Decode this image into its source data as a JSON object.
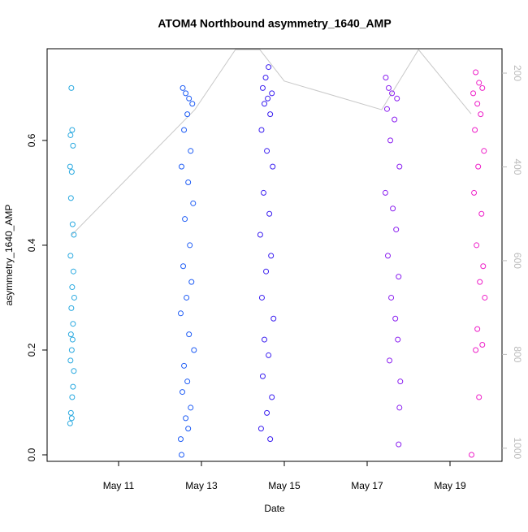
{
  "chart_data": {
    "type": "scatter",
    "title": "ATOM4 Northbound asymmetry_1640_AMP",
    "x_label": "Date",
    "y_label": "asymmetry_1640_AMP",
    "xlim": [
      9.275,
      20.255
    ],
    "xticks": [
      {
        "value": 11,
        "label": "May 11"
      },
      {
        "value": 13,
        "label": "May 13"
      },
      {
        "value": 15,
        "label": "May 15"
      },
      {
        "value": 17,
        "label": "May 17"
      },
      {
        "value": 19,
        "label": "May 19"
      }
    ],
    "ylim": [
      -0.0124,
      0.775
    ],
    "yticks": [
      {
        "value": 0,
        "label": "0.0"
      },
      0.2,
      0.4,
      0.6
    ],
    "y2lim": [
      1028,
      148
    ],
    "y2ticks": [
      200,
      400,
      600,
      800,
      1000
    ],
    "series": [
      {
        "color": "#29a9e0",
        "x": [
          9.86,
          9.88,
          9.84,
          9.9,
          9.83,
          9.87,
          9.85,
          9.89,
          9.92,
          9.84,
          9.91,
          9.88,
          9.93,
          9.86,
          9.9,
          9.85,
          9.89,
          9.87,
          9.84,
          9.92,
          9.9,
          9.88,
          9.85,
          9.87,
          9.83
        ],
        "values": [
          0.7,
          0.62,
          0.61,
          0.59,
          0.55,
          0.54,
          0.49,
          0.44,
          0.42,
          0.38,
          0.35,
          0.32,
          0.3,
          0.28,
          0.25,
          0.23,
          0.22,
          0.2,
          0.18,
          0.16,
          0.13,
          0.11,
          0.08,
          0.07,
          0.06
        ]
      },
      {
        "color": "#1e5cf5",
        "x": [
          12.55,
          12.62,
          12.7,
          12.78,
          12.66,
          12.58,
          12.74,
          12.52,
          12.68,
          12.8,
          12.6,
          12.72,
          12.56,
          12.76,
          12.64,
          12.5,
          12.7,
          12.82,
          12.58,
          12.66,
          12.54,
          12.74,
          12.62,
          12.68,
          12.52,
          12.5
        ],
        "values": [
          0.7,
          0.69,
          0.68,
          0.67,
          0.65,
          0.62,
          0.58,
          0.55,
          0.52,
          0.48,
          0.45,
          0.4,
          0.36,
          0.33,
          0.3,
          0.27,
          0.23,
          0.2,
          0.17,
          0.14,
          0.12,
          0.09,
          0.07,
          0.05,
          0.0,
          0.03
        ]
      },
      {
        "color": "#3a1ef0",
        "x": [
          14.62,
          14.55,
          14.48,
          14.7,
          14.6,
          14.52,
          14.66,
          14.45,
          14.58,
          14.72,
          14.5,
          14.64,
          14.42,
          14.68,
          14.56,
          14.46,
          14.74,
          14.52,
          14.62,
          14.48,
          14.7,
          14.58,
          14.44,
          14.66
        ],
        "values": [
          0.74,
          0.72,
          0.7,
          0.69,
          0.68,
          0.67,
          0.65,
          0.62,
          0.58,
          0.55,
          0.5,
          0.46,
          0.42,
          0.38,
          0.35,
          0.3,
          0.26,
          0.22,
          0.19,
          0.15,
          0.11,
          0.08,
          0.05,
          0.03
        ]
      },
      {
        "color": "#8a1ef0",
        "x": [
          17.45,
          17.52,
          17.6,
          17.72,
          17.48,
          17.66,
          17.56,
          17.78,
          17.44,
          17.62,
          17.7,
          17.5,
          17.76,
          17.58,
          17.68,
          17.74,
          17.54,
          17.8,
          17.78,
          17.76
        ],
        "values": [
          0.72,
          0.7,
          0.69,
          0.68,
          0.66,
          0.64,
          0.6,
          0.55,
          0.5,
          0.47,
          0.43,
          0.38,
          0.34,
          0.3,
          0.26,
          0.22,
          0.18,
          0.14,
          0.09,
          0.02
        ]
      },
      {
        "color": "#ee1ec8",
        "x": [
          19.62,
          19.7,
          19.78,
          19.56,
          19.66,
          19.74,
          19.6,
          19.82,
          19.68,
          19.58,
          19.76,
          19.64,
          19.8,
          19.72,
          19.84,
          19.66,
          19.78,
          19.62,
          19.7,
          19.52
        ],
        "values": [
          0.73,
          0.71,
          0.7,
          0.69,
          0.67,
          0.65,
          0.62,
          0.58,
          0.55,
          0.5,
          0.46,
          0.4,
          0.36,
          0.33,
          0.3,
          0.24,
          0.21,
          0.2,
          0.11,
          0.0
        ]
      },
      {
        "color": "#c8c8c8",
        "axis": "y2",
        "x": [
          9.86,
          12.84,
          13.82,
          14.41,
          15.0,
          17.35,
          18.24,
          19.51
        ],
        "values": [
          546,
          278,
          150,
          150,
          217,
          278,
          150,
          287
        ]
      }
    ]
  }
}
